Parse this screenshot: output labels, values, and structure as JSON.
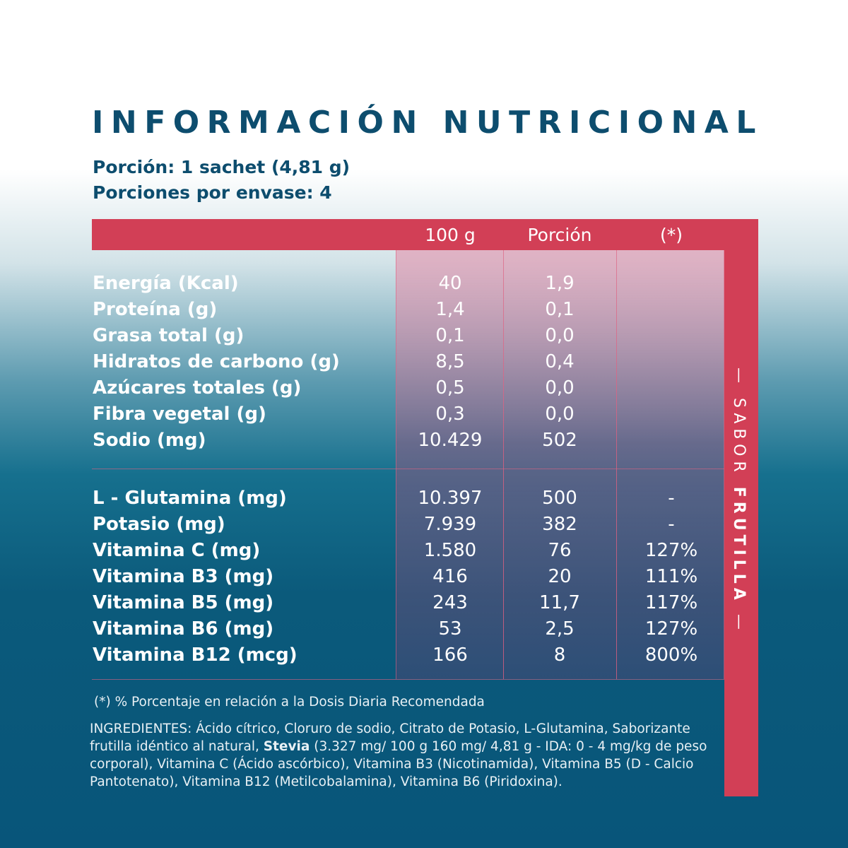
{
  "header": {
    "title": "INFORMACIÓN NUTRICIONAL",
    "serving": "Porción: 1 sachet (4,81 g)",
    "servings_per_pack": "Porciones por envase: 4"
  },
  "table": {
    "columns": [
      "100 g",
      "Porción",
      "(*)"
    ],
    "sections": [
      [
        [
          "Energía (Kcal)",
          "40",
          "1,9",
          ""
        ],
        [
          "Proteína (g)",
          "1,4",
          "0,1",
          ""
        ],
        [
          "Grasa total (g)",
          "0,1",
          "0,0",
          ""
        ],
        [
          "Hidratos de carbono (g)",
          "8,5",
          "0,4",
          ""
        ],
        [
          "Azúcares totales (g)",
          "0,5",
          "0,0",
          ""
        ],
        [
          "Fibra vegetal (g)",
          "0,3",
          "0,0",
          ""
        ],
        [
          "Sodio (mg)",
          "10.429",
          "502",
          ""
        ]
      ],
      [
        [
          "L - Glutamina (mg)",
          "10.397",
          "500",
          "-"
        ],
        [
          "Potasio (mg)",
          "7.939",
          "382",
          "-"
        ],
        [
          "Vitamina C (mg)",
          "1.580",
          "76",
          "127%"
        ],
        [
          "Vitamina B3 (mg)",
          "416",
          "20",
          "111%"
        ],
        [
          "Vitamina B5 (mg)",
          "243",
          "11,7",
          "117%"
        ],
        [
          "Vitamina B6 (mg)",
          "53",
          "2,5",
          "127%"
        ],
        [
          "Vitamina B12 (mcg)",
          "166",
          "8",
          "800%"
        ]
      ]
    ]
  },
  "footnote": "(*) % Porcentaje en relación a la Dosis Diaria Recomendada",
  "ingredients": {
    "before": "INGREDIENTES: Ácido cítrico, Cloruro de sodio, Citrato de Potasio, L-Glutamina, Saborizante frutilla idéntico al natural, ",
    "bold": "Stevia",
    "after": " (3.327 mg/ 100 g 160 mg/ 4,81 g - IDA: 0 - 4 mg/kg de peso corporal), Vitamina C (Ácido ascórbico), Vitamina B3 (Nicotinamida), Vitamina B5 (D - Calcio Pantotenato), Vitamina B12 (Metilcobalamina),  Vitamina B6 (Piridoxina)."
  },
  "side": {
    "label": "SABOR",
    "flavor": "FRUTILLA"
  }
}
